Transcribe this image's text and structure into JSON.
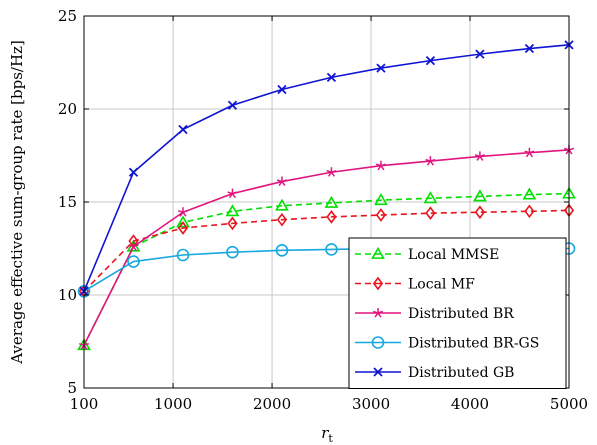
{
  "chart_data": {
    "type": "line",
    "xlabel_main": "r",
    "xlabel_sub": "t",
    "ylabel": "Average effective sum-group rate [bps/Hz]",
    "xlim": [
      100,
      5000
    ],
    "ylim": [
      5,
      25
    ],
    "xticks": [
      100,
      1000,
      2000,
      3000,
      4000,
      5000
    ],
    "yticks": [
      5,
      10,
      15,
      20,
      25
    ],
    "grid": true,
    "legend_position": "bottom-right",
    "x": [
      100,
      600,
      1100,
      1600,
      2100,
      2600,
      3100,
      3600,
      4100,
      4600,
      5000
    ],
    "series": [
      {
        "name": "Local MMSE",
        "color": "#00e000",
        "dash": "dashed",
        "marker": "triangle",
        "values": [
          7.3,
          12.6,
          13.9,
          14.5,
          14.8,
          14.95,
          15.1,
          15.2,
          15.3,
          15.4,
          15.45
        ]
      },
      {
        "name": "Local MF",
        "color": "#e8141e",
        "dash": "dashed",
        "marker": "diamond",
        "values": [
          10.2,
          12.9,
          13.6,
          13.85,
          14.05,
          14.2,
          14.3,
          14.4,
          14.45,
          14.5,
          14.55
        ]
      },
      {
        "name": "Distributed BR",
        "color": "#e0157f",
        "dash": "solid",
        "marker": "star",
        "values": [
          7.3,
          12.6,
          14.45,
          15.45,
          16.1,
          16.6,
          16.95,
          17.2,
          17.45,
          17.65,
          17.8
        ]
      },
      {
        "name": "Distributed BR-GS",
        "color": "#16a8de",
        "dash": "solid",
        "marker": "circle",
        "values": [
          10.2,
          11.8,
          12.15,
          12.3,
          12.4,
          12.45,
          12.5,
          12.5,
          12.5,
          12.5,
          12.5
        ]
      },
      {
        "name": "Distributed GB",
        "color": "#1014d4",
        "dash": "solid",
        "marker": "cross",
        "values": [
          10.2,
          16.6,
          18.9,
          20.2,
          21.05,
          21.7,
          22.2,
          22.6,
          22.95,
          23.25,
          23.45
        ]
      }
    ]
  }
}
